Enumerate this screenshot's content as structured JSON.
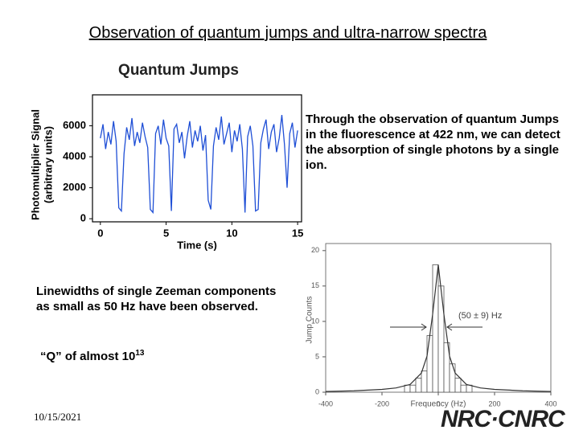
{
  "title": "Observation of quantum jumps and ultra-narrow spectra",
  "right_text": "Through the observation of quantum Jumps in the fluorescence at 422 nm, we can detect the absorption of single photons by a single ion.",
  "left_text": "Linewidths of single Zeeman components as small as 50 Hz have been observed.",
  "q_text": "“Q” of almost 10",
  "q_exponent": "13",
  "date": "10/15/2021",
  "logo": "NRC·CNRC",
  "chart_data": [
    {
      "type": "line",
      "title": "Quantum Jumps",
      "x_label": "Time (s)",
      "y_label": [
        "Photomultiplier Signal",
        "(arbitrary units)"
      ],
      "x": [
        0,
        0.2,
        0.4,
        0.6,
        0.8,
        1.0,
        1.2,
        1.4,
        1.6,
        1.8,
        2.0,
        2.2,
        2.4,
        2.6,
        2.8,
        3.0,
        3.2,
        3.4,
        3.6,
        3.8,
        4.0,
        4.2,
        4.4,
        4.6,
        4.8,
        5.0,
        5.2,
        5.4,
        5.6,
        5.8,
        6.0,
        6.2,
        6.4,
        6.6,
        6.8,
        7.0,
        7.2,
        7.4,
        7.6,
        7.8,
        8.0,
        8.2,
        8.4,
        8.6,
        8.8,
        9.0,
        9.2,
        9.4,
        9.6,
        9.8,
        10.0,
        10.2,
        10.4,
        10.6,
        10.8,
        11.0,
        11.2,
        11.4,
        11.6,
        11.8,
        12.0,
        12.2,
        12.4,
        12.6,
        12.8,
        13.0,
        13.2,
        13.4,
        13.6,
        13.8,
        14.0,
        14.2,
        14.4,
        14.6,
        14.8,
        15.0
      ],
      "series": [
        {
          "color": "#1f4fd6",
          "values": [
            5200,
            6100,
            4500,
            5600,
            4800,
            6300,
            5000,
            700,
            500,
            4200,
            5900,
            5100,
            6500,
            4700,
            5600,
            4900,
            6200,
            5300,
            4600,
            600,
            400,
            5500,
            6000,
            4800,
            6400,
            5200,
            4700,
            500,
            5800,
            6100,
            4900,
            5600,
            3900,
            5300,
            6300,
            4600,
            5700,
            5000,
            6000,
            4400,
            5400,
            1200,
            600,
            4700,
            5900,
            5100,
            6600,
            4800,
            5500,
            6200,
            4300,
            5700,
            5000,
            6100,
            4500,
            400,
            5300,
            6000,
            4700,
            500,
            600,
            4900,
            5800,
            6400,
            4500,
            5600,
            6100,
            4300,
            5200,
            6700,
            4800,
            2000,
            5500,
            6200,
            4600,
            5700
          ]
        }
      ],
      "xlim": [
        -0.6,
        15.3
      ],
      "ylim": [
        -200,
        8000
      ],
      "xticks": [
        0,
        5,
        10,
        15
      ],
      "yticks": [
        0,
        2000,
        4000,
        6000
      ]
    },
    {
      "type": "histogram",
      "x_label": "Frequency (Hz)",
      "y_label": "Jump Counts",
      "annotation": "(50 ± 9) Hz",
      "bins": [
        -200,
        -180,
        -160,
        -140,
        -120,
        -100,
        -80,
        -60,
        -40,
        -20,
        0,
        20,
        40,
        60,
        80,
        100,
        120,
        140,
        160,
        180,
        200
      ],
      "values": [
        0,
        0,
        0,
        0,
        1,
        1,
        2,
        3,
        8,
        18,
        15,
        7,
        4,
        2,
        1,
        1,
        0,
        0,
        0,
        0
      ],
      "color": "#ffffff",
      "fit": {
        "x": [
          -400,
          -300,
          -200,
          -150,
          -100,
          -60,
          -40,
          -20,
          0,
          20,
          40,
          60,
          100,
          150,
          200,
          300,
          400
        ],
        "values": [
          0.1,
          0.2,
          0.4,
          0.6,
          1.1,
          2.7,
          5.1,
          11.0,
          18,
          11.0,
          5.1,
          2.7,
          1.1,
          0.6,
          0.4,
          0.2,
          0.1
        ]
      },
      "xlim": [
        -400,
        400
      ],
      "ylim": [
        0,
        21
      ],
      "xticks": [
        -400,
        -200,
        0,
        200,
        400
      ],
      "yticks": [
        0,
        5,
        10,
        15,
        20
      ]
    }
  ]
}
